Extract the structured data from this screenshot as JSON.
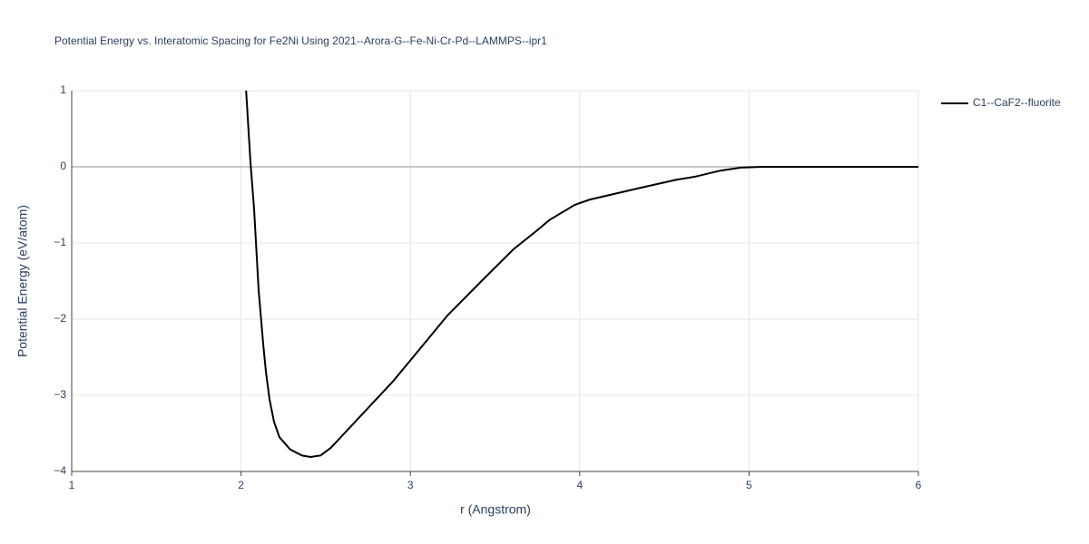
{
  "chart_data": {
    "type": "line",
    "title": "Potential Energy vs. Interatomic Spacing for Fe2Ni Using 2021--Arora-G--Fe-Ni-Cr-Pd--LAMMPS--ipr1",
    "x_label": "r (Angstrom)",
    "y_label": "Potential Energy (eV/atom)",
    "x": [
      2.03,
      2.056,
      2.077,
      2.104,
      2.131,
      2.147,
      2.168,
      2.195,
      2.227,
      2.29,
      2.36,
      2.41,
      2.47,
      2.53,
      2.61,
      2.9,
      3.22,
      3.42,
      3.61,
      3.74,
      3.82,
      3.97,
      4.06,
      4.33,
      4.57,
      4.68,
      4.83,
      4.95,
      5.08,
      6.0
    ],
    "series": [
      {
        "name": "C1--CaF2--fluorite",
        "color": "#000000",
        "values": [
          1.0,
          0.05,
          -0.55,
          -1.62,
          -2.33,
          -2.69,
          -3.05,
          -3.35,
          -3.55,
          -3.71,
          -3.79,
          -3.81,
          -3.79,
          -3.69,
          -3.5,
          -2.81,
          -1.95,
          -1.5,
          -1.08,
          -0.85,
          -0.7,
          -0.5,
          -0.43,
          -0.29,
          -0.17,
          -0.13,
          -0.05,
          -0.01,
          0,
          0
        ]
      }
    ],
    "xlim": [
      1,
      6
    ],
    "xticks": [
      1,
      2,
      3,
      4,
      5,
      6
    ],
    "ylim": [
      -4,
      1
    ],
    "yticks": [
      {
        "value": -4,
        "label": "−4"
      },
      {
        "value": -3,
        "label": "−3"
      },
      {
        "value": -2,
        "label": "−2"
      },
      {
        "value": -1,
        "label": "−1"
      },
      0,
      1
    ],
    "grid": true,
    "zeroline": true,
    "legend": "right"
  }
}
